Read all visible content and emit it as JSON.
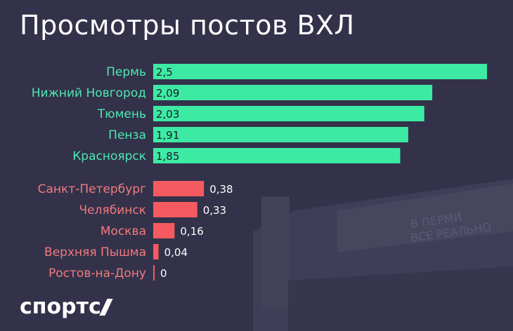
{
  "title": "Просмотры постов ВХЛ",
  "logo": "спортс",
  "colors": {
    "background": "#33324a",
    "positive": "#3deaa4",
    "negative": "#f45a5f",
    "positive_label": "#4de8b0",
    "negative_label": "#f27a7c",
    "value_text_inside": "#1b1b2a",
    "value_text_outside": "#ffffff"
  },
  "chart_data": {
    "type": "bar",
    "orientation": "horizontal",
    "title": "Просмотры постов ВХЛ",
    "groups": [
      {
        "categories": [
          "Пермь",
          "Нижний Новгород",
          "Тюмень",
          "Пенза",
          "Красноярск"
        ],
        "values": [
          2.5,
          2.09,
          2.03,
          1.91,
          1.85
        ],
        "value_labels": [
          "2,5",
          "2,09",
          "2,03",
          "1,91",
          "1,85"
        ],
        "color": "#3deaa4"
      },
      {
        "categories": [
          "Санкт-Петербург",
          "Челябинск",
          "Москва",
          "Верхняя Пышма",
          "Ростов-на-Дону"
        ],
        "values": [
          0.38,
          0.33,
          0.16,
          0.04,
          0
        ],
        "value_labels": [
          "0,38",
          "0,33",
          "0,16",
          "0,04",
          "0"
        ],
        "color": "#f45a5f"
      }
    ],
    "xlim": [
      0,
      2.5
    ],
    "grid": false,
    "legend": "none"
  }
}
